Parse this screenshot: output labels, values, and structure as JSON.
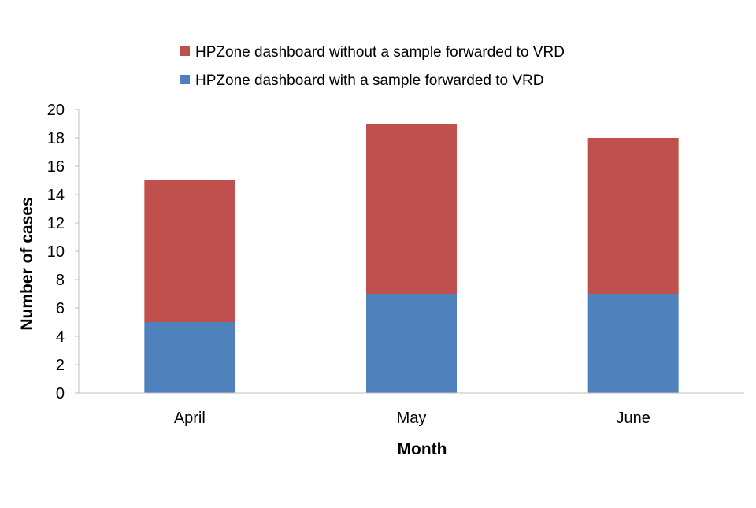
{
  "chart_data": {
    "type": "bar",
    "stacked": true,
    "title": "",
    "xlabel": "Month",
    "ylabel": "Number of cases",
    "categories": [
      "April",
      "May",
      "June"
    ],
    "series": [
      {
        "name": "HPZone dashboard with a sample forwarded to VRD",
        "color": "#4f81bd",
        "values": [
          5,
          7,
          7
        ]
      },
      {
        "name": "HPZone dashboard without a sample forwarded to VRD",
        "color": "#c0504d",
        "values": [
          10,
          12,
          11
        ]
      }
    ],
    "ylim": [
      0,
      20
    ],
    "ytick_step": 2,
    "yticks": [
      "0",
      "2",
      "4",
      "6",
      "8",
      "10",
      "12",
      "14",
      "16",
      "18",
      "20"
    ],
    "grid": false,
    "legend_position": "top"
  }
}
